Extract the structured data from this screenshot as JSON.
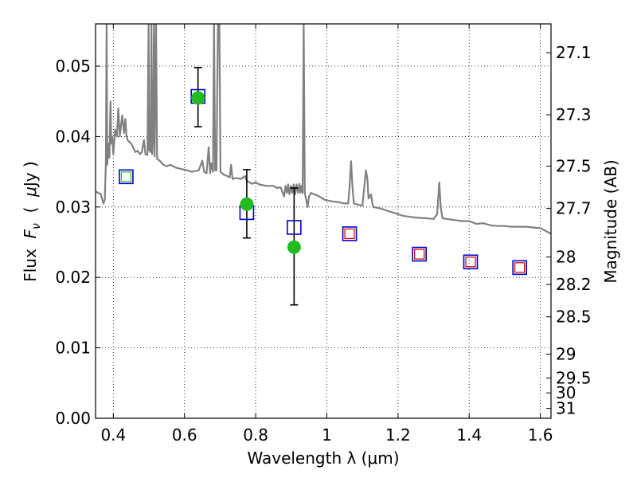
{
  "chart_data": {
    "type": "scatter",
    "xlabel": "Wavelength  λ (μm)",
    "ylabel": "Flux  F_ν  ( μJy )",
    "ylabel_parts": {
      "pre": "Flux  ",
      "var": "F",
      "sub": "ν",
      "mid": "  (  ",
      "mu": "μ",
      "post": "Jy )"
    },
    "y2label": "Magnitude (AB)",
    "xlim": [
      0.35,
      1.63
    ],
    "ylim": [
      0.0,
      0.056
    ],
    "grid": true,
    "colors": {
      "spectrum": "#808080",
      "model": "#0000cc",
      "obs_model": "#cc0000",
      "observed": "#22bb22",
      "errorbar": "#000000"
    },
    "x_ticks": [
      {
        "v": 0.4,
        "t": "0.4"
      },
      {
        "v": 0.6,
        "t": "0.6"
      },
      {
        "v": 0.8,
        "t": "0.8"
      },
      {
        "v": 1.0,
        "t": "1"
      },
      {
        "v": 1.2,
        "t": "1.2"
      },
      {
        "v": 1.4,
        "t": "1.4"
      },
      {
        "v": 1.6,
        "t": "1.6"
      }
    ],
    "y_ticks": [
      {
        "v": 0.0,
        "t": "0.00"
      },
      {
        "v": 0.01,
        "t": "0.01"
      },
      {
        "v": 0.02,
        "t": "0.02"
      },
      {
        "v": 0.03,
        "t": "0.03"
      },
      {
        "v": 0.04,
        "t": "0.04"
      },
      {
        "v": 0.05,
        "t": "0.05"
      }
    ],
    "y2_ticks": [
      {
        "v": 0.0519,
        "t": "27.1"
      },
      {
        "v": 0.0431,
        "t": "27.3"
      },
      {
        "v": 0.0358,
        "t": "27.5"
      },
      {
        "v": 0.0298,
        "t": "27.7"
      },
      {
        "v": 0.0229,
        "t": "28"
      },
      {
        "v": 0.019,
        "t": "28.2"
      },
      {
        "v": 0.0144,
        "t": "28.5"
      },
      {
        "v": 0.0091,
        "t": "29"
      },
      {
        "v": 0.0057,
        "t": "29.5"
      },
      {
        "v": 0.0036,
        "t": "30"
      },
      {
        "v": 0.0014,
        "t": "31"
      }
    ],
    "spectrum": [
      [
        0.35,
        0.0322
      ],
      [
        0.365,
        0.0318
      ],
      [
        0.372,
        0.0305
      ],
      [
        0.376,
        0.031
      ],
      [
        0.379,
        0.0365
      ],
      [
        0.381,
        0.056
      ],
      [
        0.383,
        0.036
      ],
      [
        0.386,
        0.039
      ],
      [
        0.389,
        0.037
      ],
      [
        0.392,
        0.045
      ],
      [
        0.394,
        0.039
      ],
      [
        0.397,
        0.04
      ],
      [
        0.4,
        0.0375
      ],
      [
        0.405,
        0.041
      ],
      [
        0.41,
        0.04
      ],
      [
        0.414,
        0.044
      ],
      [
        0.418,
        0.04
      ],
      [
        0.425,
        0.043
      ],
      [
        0.43,
        0.0405
      ],
      [
        0.434,
        0.0425
      ],
      [
        0.437,
        0.04
      ],
      [
        0.44,
        0.0395
      ],
      [
        0.45,
        0.039
      ],
      [
        0.458,
        0.0382
      ],
      [
        0.462,
        0.0378
      ],
      [
        0.468,
        0.038
      ],
      [
        0.475,
        0.0375
      ],
      [
        0.48,
        0.0378
      ],
      [
        0.486,
        0.0395
      ],
      [
        0.49,
        0.0375
      ],
      [
        0.496,
        0.0374
      ],
      [
        0.499,
        0.056
      ],
      [
        0.501,
        0.038
      ],
      [
        0.503,
        0.04
      ],
      [
        0.505,
        0.0378
      ],
      [
        0.507,
        0.056
      ],
      [
        0.509,
        0.0375
      ],
      [
        0.512,
        0.04
      ],
      [
        0.514,
        0.056
      ],
      [
        0.516,
        0.0372
      ],
      [
        0.52,
        0.056
      ],
      [
        0.523,
        0.0368
      ],
      [
        0.53,
        0.0366
      ],
      [
        0.54,
        0.036
      ],
      [
        0.55,
        0.0358
      ],
      [
        0.56,
        0.036
      ],
      [
        0.575,
        0.0356
      ],
      [
        0.59,
        0.0354
      ],
      [
        0.6,
        0.0353
      ],
      [
        0.62,
        0.035
      ],
      [
        0.64,
        0.0352
      ],
      [
        0.65,
        0.0366
      ],
      [
        0.655,
        0.035
      ],
      [
        0.662,
        0.0348
      ],
      [
        0.668,
        0.0385
      ],
      [
        0.672,
        0.0348
      ],
      [
        0.675,
        0.0362
      ],
      [
        0.68,
        0.035
      ],
      [
        0.683,
        0.056
      ],
      [
        0.686,
        0.0352
      ],
      [
        0.69,
        0.0352
      ],
      [
        0.694,
        0.056
      ],
      [
        0.698,
        0.056
      ],
      [
        0.701,
        0.035
      ],
      [
        0.71,
        0.0346
      ],
      [
        0.72,
        0.0344
      ],
      [
        0.727,
        0.0342
      ],
      [
        0.731,
        0.036
      ],
      [
        0.735,
        0.034
      ],
      [
        0.745,
        0.0341
      ],
      [
        0.76,
        0.034
      ],
      [
        0.77,
        0.0344
      ],
      [
        0.775,
        0.0337
      ],
      [
        0.79,
        0.0333
      ],
      [
        0.8,
        0.0335
      ],
      [
        0.81,
        0.0332
      ],
      [
        0.83,
        0.033
      ],
      [
        0.85,
        0.033
      ],
      [
        0.86,
        0.0327
      ],
      [
        0.87,
        0.0328
      ],
      [
        0.88,
        0.0315
      ],
      [
        0.884,
        0.033
      ],
      [
        0.888,
        0.032
      ],
      [
        0.891,
        0.0332
      ],
      [
        0.895,
        0.0318
      ],
      [
        0.899,
        0.033
      ],
      [
        0.903,
        0.032
      ],
      [
        0.907,
        0.0332
      ],
      [
        0.911,
        0.0318
      ],
      [
        0.915,
        0.0332
      ],
      [
        0.919,
        0.032
      ],
      [
        0.923,
        0.0333
      ],
      [
        0.926,
        0.032
      ],
      [
        0.929,
        0.033
      ],
      [
        0.932,
        0.032
      ],
      [
        0.935,
        0.056
      ],
      [
        0.938,
        0.032
      ],
      [
        0.942,
        0.031
      ],
      [
        0.946,
        0.03
      ],
      [
        0.95,
        0.0315
      ],
      [
        0.955,
        0.032
      ],
      [
        0.965,
        0.0318
      ],
      [
        0.975,
        0.0316
      ],
      [
        0.985,
        0.0313
      ],
      [
        0.995,
        0.031
      ],
      [
        1.005,
        0.0309
      ],
      [
        1.015,
        0.0308
      ],
      [
        1.03,
        0.0307
      ],
      [
        1.05,
        0.0305
      ],
      [
        1.06,
        0.0305
      ],
      [
        1.064,
        0.033
      ],
      [
        1.068,
        0.0365
      ],
      [
        1.072,
        0.033
      ],
      [
        1.076,
        0.0305
      ],
      [
        1.09,
        0.0303
      ],
      [
        1.1,
        0.0302
      ],
      [
        1.106,
        0.0332
      ],
      [
        1.11,
        0.0352
      ],
      [
        1.114,
        0.034
      ],
      [
        1.117,
        0.0312
      ],
      [
        1.124,
        0.0318
      ],
      [
        1.13,
        0.03
      ],
      [
        1.15,
        0.0298
      ],
      [
        1.18,
        0.0293
      ],
      [
        1.2,
        0.029
      ],
      [
        1.21,
        0.0288
      ],
      [
        1.22,
        0.0287
      ],
      [
        1.25,
        0.0285
      ],
      [
        1.28,
        0.0284
      ],
      [
        1.3,
        0.0283
      ],
      [
        1.31,
        0.029
      ],
      [
        1.316,
        0.0335
      ],
      [
        1.32,
        0.03
      ],
      [
        1.325,
        0.0284
      ],
      [
        1.35,
        0.0282
      ],
      [
        1.38,
        0.028
      ],
      [
        1.4,
        0.028
      ],
      [
        1.42,
        0.0276
      ],
      [
        1.44,
        0.0277
      ],
      [
        1.46,
        0.0274
      ],
      [
        1.48,
        0.0273
      ],
      [
        1.5,
        0.0273
      ],
      [
        1.52,
        0.0272
      ],
      [
        1.54,
        0.0272
      ],
      [
        1.56,
        0.0272
      ],
      [
        1.58,
        0.0271
      ],
      [
        1.6,
        0.027
      ],
      [
        1.615,
        0.0266
      ],
      [
        1.63,
        0.0262
      ]
    ],
    "model_photometry": [
      {
        "x": 0.436,
        "y": 0.0343
      },
      {
        "x": 0.638,
        "y": 0.0457
      },
      {
        "x": 0.775,
        "y": 0.0292
      },
      {
        "x": 0.908,
        "y": 0.0271
      },
      {
        "x": 1.064,
        "y": 0.0262
      },
      {
        "x": 1.26,
        "y": 0.0233
      },
      {
        "x": 1.404,
        "y": 0.0222
      },
      {
        "x": 1.542,
        "y": 0.0214
      }
    ],
    "model_inner_squares": [
      {
        "x": 0.436,
        "y": 0.0343,
        "color": "#22bb22"
      },
      {
        "x": 1.064,
        "y": 0.0262,
        "color": "#cc0000"
      },
      {
        "x": 1.26,
        "y": 0.0233,
        "color": "#cc0000"
      },
      {
        "x": 1.404,
        "y": 0.0222,
        "color": "#cc0000"
      },
      {
        "x": 1.542,
        "y": 0.0214,
        "color": "#cc0000"
      }
    ],
    "observed": [
      {
        "x": 0.638,
        "y": 0.0455,
        "yerr_lo": 0.0414,
        "yerr_hi": 0.0498
      },
      {
        "x": 0.775,
        "y": 0.0304,
        "yerr_lo": 0.0256,
        "yerr_hi": 0.0353
      },
      {
        "x": 0.908,
        "y": 0.0243,
        "yerr_lo": 0.0161,
        "yerr_hi": 0.0327
      }
    ]
  }
}
